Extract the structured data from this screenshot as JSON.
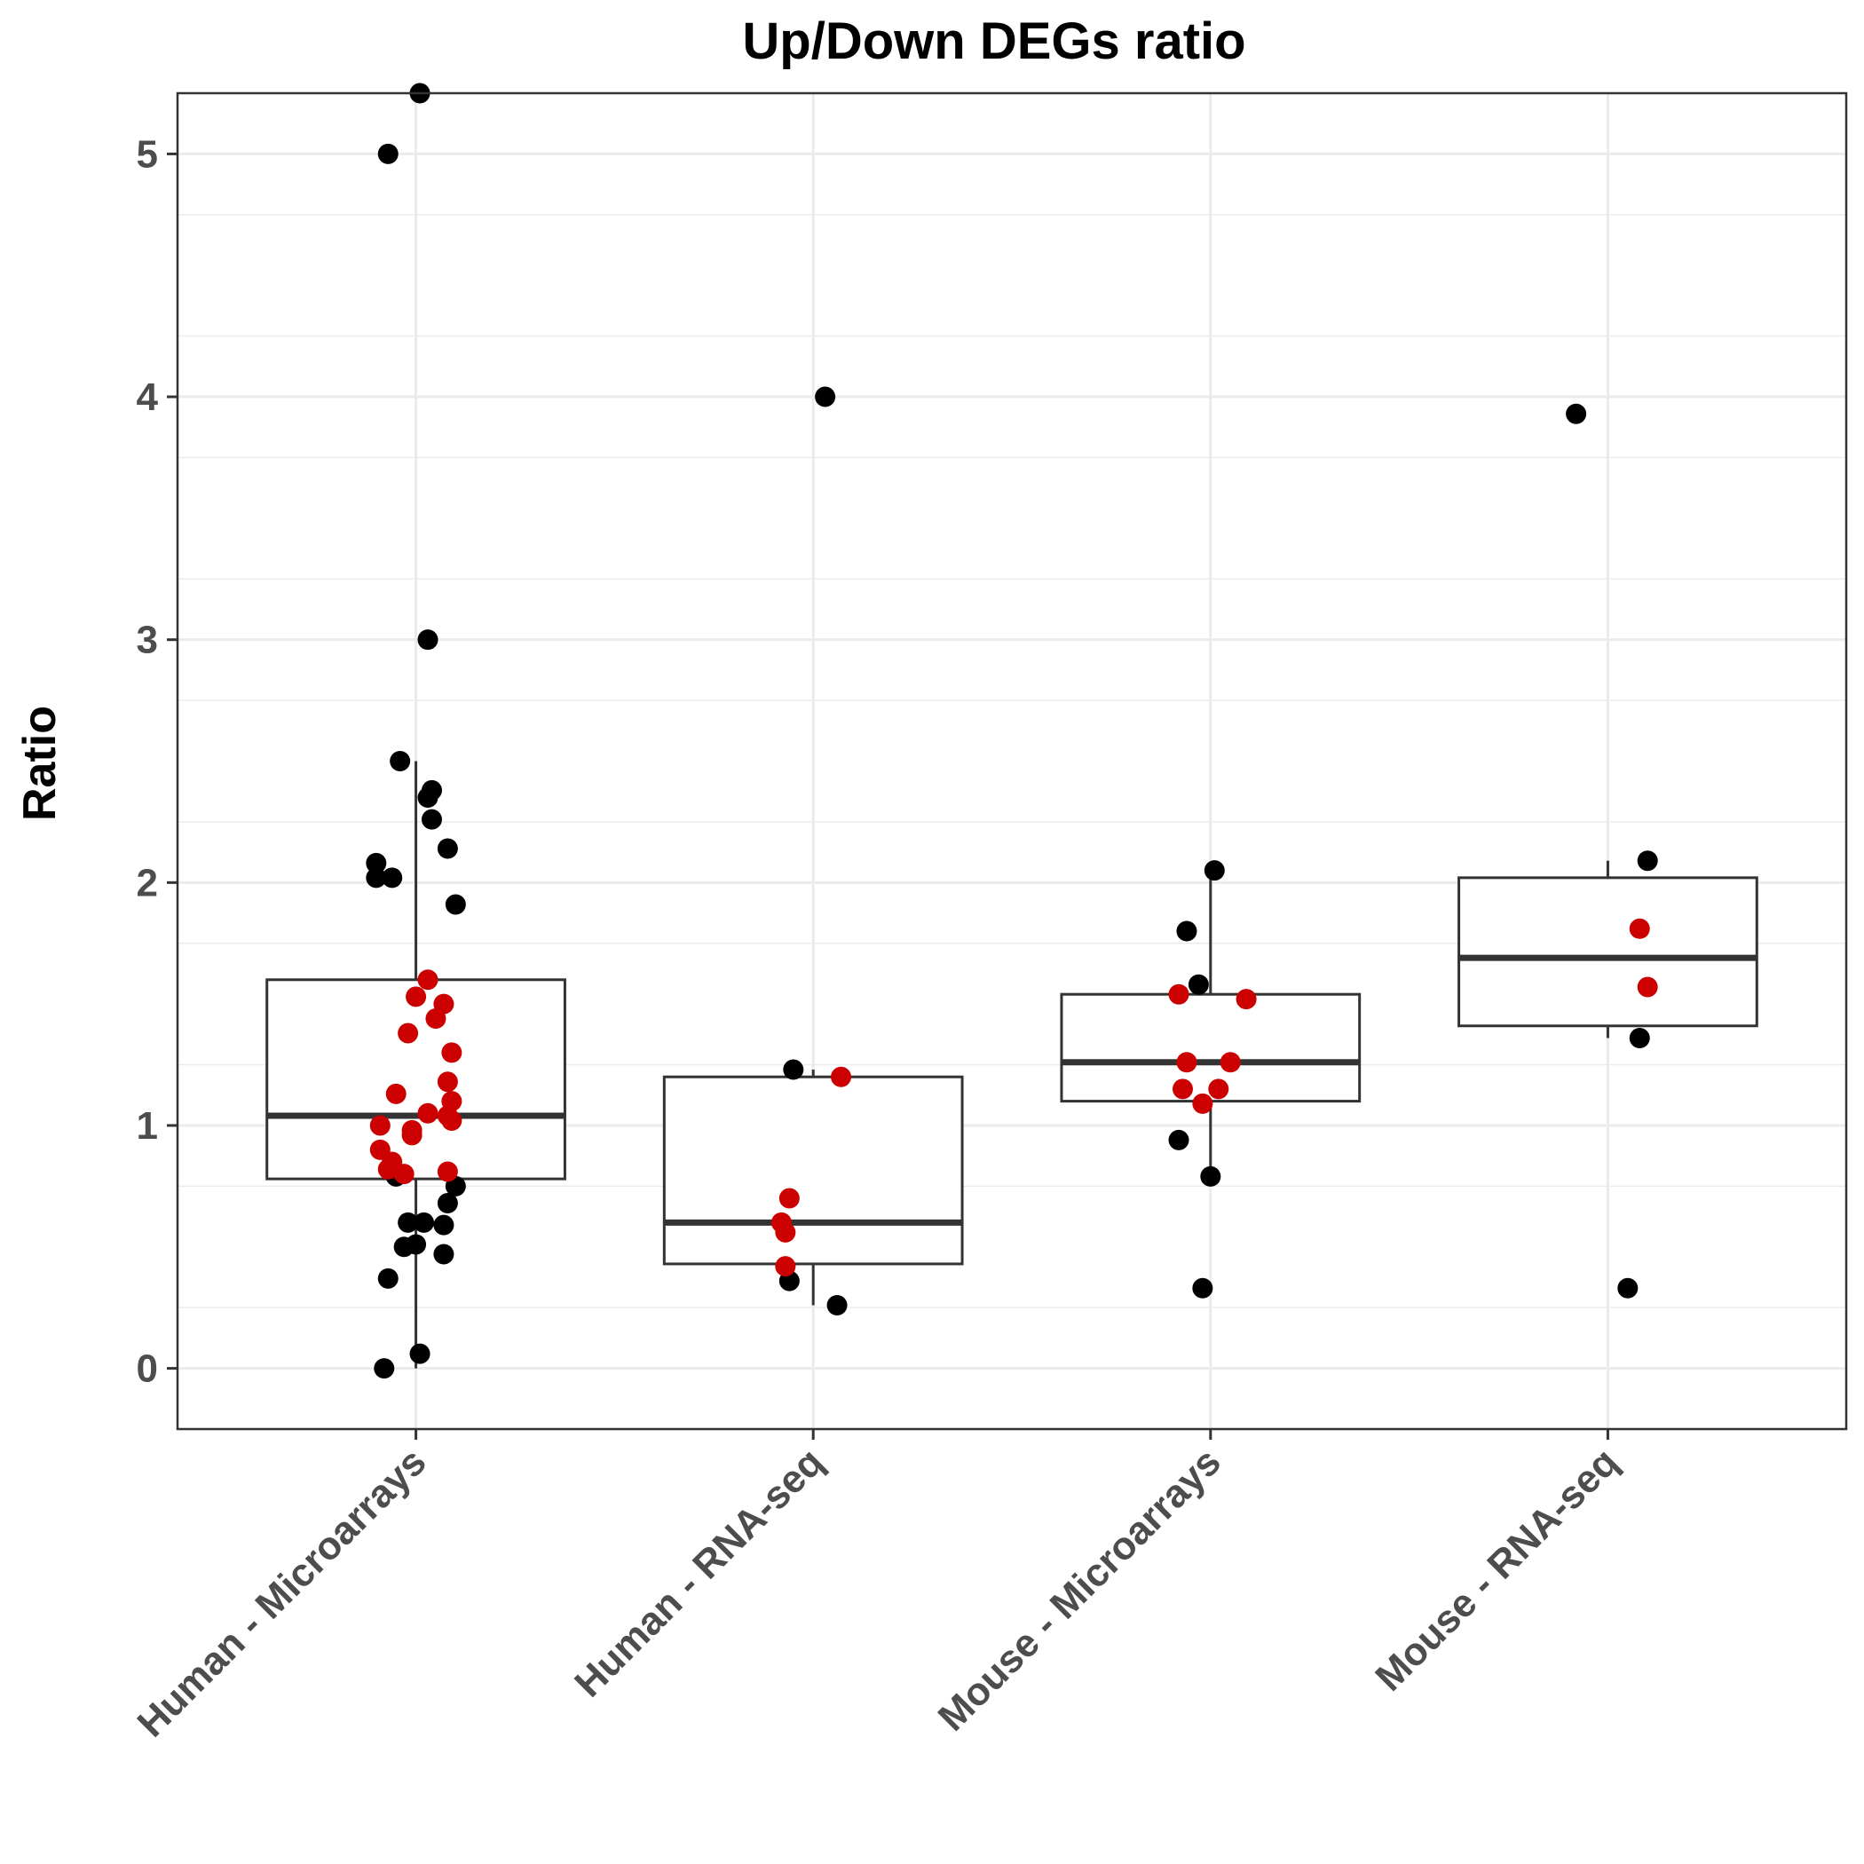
{
  "chart_data": {
    "type": "box",
    "title": "Up/Down DEGs ratio",
    "xlabel": "",
    "ylabel": "Ratio",
    "ylim": [
      -0.25,
      5.25
    ],
    "yticks": [
      0,
      1,
      2,
      3,
      4,
      5
    ],
    "grid": true,
    "categories": [
      "Human - Microarrays",
      "Human - RNA-seq",
      "Mouse - Microarrays",
      "Mouse - RNA-seq"
    ],
    "colors": {
      "black_point": "#000000",
      "red_point": "#cc0000",
      "box": "#333333",
      "grid": "#ebebeb"
    },
    "boxes": [
      {
        "category": "Human - Microarrays",
        "q1": 0.78,
        "median": 1.04,
        "q3": 1.6,
        "whisker_low": 0.0,
        "whisker_high": 2.5
      },
      {
        "category": "Human - RNA-seq",
        "q1": 0.43,
        "median": 0.6,
        "q3": 1.2,
        "whisker_low": 0.26,
        "whisker_high": 1.23
      },
      {
        "category": "Mouse - Microarrays",
        "q1": 1.1,
        "median": 1.26,
        "q3": 1.54,
        "whisker_low": 0.79,
        "whisker_high": 2.05
      },
      {
        "category": "Mouse - RNA-seq",
        "q1": 1.41,
        "median": 1.69,
        "q3": 2.02,
        "whisker_low": 1.36,
        "whisker_high": 2.09
      }
    ],
    "points": [
      {
        "category": "Human - Microarrays",
        "jitter": 0.01,
        "y": 5.25,
        "group": "black"
      },
      {
        "category": "Human - Microarrays",
        "jitter": -0.07,
        "y": 5.0,
        "group": "black"
      },
      {
        "category": "Human - Microarrays",
        "jitter": 0.03,
        "y": 3.0,
        "group": "black"
      },
      {
        "category": "Human - Microarrays",
        "jitter": -0.04,
        "y": 2.5,
        "group": "black"
      },
      {
        "category": "Human - Microarrays",
        "jitter": 0.04,
        "y": 2.38,
        "group": "black"
      },
      {
        "category": "Human - Microarrays",
        "jitter": 0.03,
        "y": 2.35,
        "group": "black"
      },
      {
        "category": "Human - Microarrays",
        "jitter": 0.04,
        "y": 2.26,
        "group": "black"
      },
      {
        "category": "Human - Microarrays",
        "jitter": 0.08,
        "y": 2.14,
        "group": "black"
      },
      {
        "category": "Human - Microarrays",
        "jitter": -0.1,
        "y": 2.08,
        "group": "black"
      },
      {
        "category": "Human - Microarrays",
        "jitter": -0.1,
        "y": 2.02,
        "group": "black"
      },
      {
        "category": "Human - Microarrays",
        "jitter": -0.06,
        "y": 2.02,
        "group": "black"
      },
      {
        "category": "Human - Microarrays",
        "jitter": 0.1,
        "y": 1.91,
        "group": "black"
      },
      {
        "category": "Human - Microarrays",
        "jitter": -0.05,
        "y": 0.79,
        "group": "black"
      },
      {
        "category": "Human - Microarrays",
        "jitter": 0.1,
        "y": 0.75,
        "group": "black"
      },
      {
        "category": "Human - Microarrays",
        "jitter": 0.08,
        "y": 0.68,
        "group": "black"
      },
      {
        "category": "Human - Microarrays",
        "jitter": -0.02,
        "y": 0.6,
        "group": "black"
      },
      {
        "category": "Human - Microarrays",
        "jitter": 0.02,
        "y": 0.6,
        "group": "black"
      },
      {
        "category": "Human - Microarrays",
        "jitter": 0.07,
        "y": 0.59,
        "group": "black"
      },
      {
        "category": "Human - Microarrays",
        "jitter": -0.03,
        "y": 0.5,
        "group": "black"
      },
      {
        "category": "Human - Microarrays",
        "jitter": 0.0,
        "y": 0.51,
        "group": "black"
      },
      {
        "category": "Human - Microarrays",
        "jitter": 0.07,
        "y": 0.47,
        "group": "black"
      },
      {
        "category": "Human - Microarrays",
        "jitter": -0.07,
        "y": 0.37,
        "group": "black"
      },
      {
        "category": "Human - Microarrays",
        "jitter": 0.01,
        "y": 0.06,
        "group": "black"
      },
      {
        "category": "Human - Microarrays",
        "jitter": -0.08,
        "y": 0.0,
        "group": "black"
      },
      {
        "category": "Human - Microarrays",
        "jitter": 0.03,
        "y": 1.6,
        "group": "red"
      },
      {
        "category": "Human - Microarrays",
        "jitter": 0.0,
        "y": 1.53,
        "group": "red"
      },
      {
        "category": "Human - Microarrays",
        "jitter": 0.07,
        "y": 1.5,
        "group": "red"
      },
      {
        "category": "Human - Microarrays",
        "jitter": 0.05,
        "y": 1.44,
        "group": "red"
      },
      {
        "category": "Human - Microarrays",
        "jitter": -0.02,
        "y": 1.38,
        "group": "red"
      },
      {
        "category": "Human - Microarrays",
        "jitter": 0.09,
        "y": 1.3,
        "group": "red"
      },
      {
        "category": "Human - Microarrays",
        "jitter": 0.08,
        "y": 1.18,
        "group": "red"
      },
      {
        "category": "Human - Microarrays",
        "jitter": -0.05,
        "y": 1.13,
        "group": "red"
      },
      {
        "category": "Human - Microarrays",
        "jitter": 0.09,
        "y": 1.1,
        "group": "red"
      },
      {
        "category": "Human - Microarrays",
        "jitter": 0.03,
        "y": 1.05,
        "group": "red"
      },
      {
        "category": "Human - Microarrays",
        "jitter": 0.08,
        "y": 1.04,
        "group": "red"
      },
      {
        "category": "Human - Microarrays",
        "jitter": 0.09,
        "y": 1.02,
        "group": "red"
      },
      {
        "category": "Human - Microarrays",
        "jitter": -0.09,
        "y": 1.0,
        "group": "red"
      },
      {
        "category": "Human - Microarrays",
        "jitter": -0.01,
        "y": 0.98,
        "group": "red"
      },
      {
        "category": "Human - Microarrays",
        "jitter": -0.01,
        "y": 0.96,
        "group": "red"
      },
      {
        "category": "Human - Microarrays",
        "jitter": -0.09,
        "y": 0.9,
        "group": "red"
      },
      {
        "category": "Human - Microarrays",
        "jitter": -0.06,
        "y": 0.85,
        "group": "red"
      },
      {
        "category": "Human - Microarrays",
        "jitter": -0.07,
        "y": 0.82,
        "group": "red"
      },
      {
        "category": "Human - Microarrays",
        "jitter": -0.03,
        "y": 0.8,
        "group": "red"
      },
      {
        "category": "Human - Microarrays",
        "jitter": 0.08,
        "y": 0.81,
        "group": "red"
      },
      {
        "category": "Human - RNA-seq",
        "jitter": 0.03,
        "y": 4.0,
        "group": "black"
      },
      {
        "category": "Human - RNA-seq",
        "jitter": -0.05,
        "y": 1.23,
        "group": "black"
      },
      {
        "category": "Human - RNA-seq",
        "jitter": -0.06,
        "y": 0.36,
        "group": "black"
      },
      {
        "category": "Human - RNA-seq",
        "jitter": 0.06,
        "y": 0.26,
        "group": "black"
      },
      {
        "category": "Human - RNA-seq",
        "jitter": 0.07,
        "y": 1.2,
        "group": "red"
      },
      {
        "category": "Human - RNA-seq",
        "jitter": -0.06,
        "y": 0.7,
        "group": "red"
      },
      {
        "category": "Human - RNA-seq",
        "jitter": -0.08,
        "y": 0.6,
        "group": "red"
      },
      {
        "category": "Human - RNA-seq",
        "jitter": -0.07,
        "y": 0.56,
        "group": "red"
      },
      {
        "category": "Human - RNA-seq",
        "jitter": -0.07,
        "y": 0.42,
        "group": "red"
      },
      {
        "category": "Mouse - Microarrays",
        "jitter": 0.01,
        "y": 2.05,
        "group": "black"
      },
      {
        "category": "Mouse - Microarrays",
        "jitter": -0.06,
        "y": 1.8,
        "group": "black"
      },
      {
        "category": "Mouse - Microarrays",
        "jitter": -0.03,
        "y": 1.58,
        "group": "black"
      },
      {
        "category": "Mouse - Microarrays",
        "jitter": -0.08,
        "y": 0.94,
        "group": "black"
      },
      {
        "category": "Mouse - Microarrays",
        "jitter": 0.0,
        "y": 0.79,
        "group": "black"
      },
      {
        "category": "Mouse - Microarrays",
        "jitter": -0.02,
        "y": 0.33,
        "group": "black"
      },
      {
        "category": "Mouse - Microarrays",
        "jitter": -0.08,
        "y": 1.54,
        "group": "red"
      },
      {
        "category": "Mouse - Microarrays",
        "jitter": 0.09,
        "y": 1.52,
        "group": "red"
      },
      {
        "category": "Mouse - Microarrays",
        "jitter": -0.06,
        "y": 1.26,
        "group": "red"
      },
      {
        "category": "Mouse - Microarrays",
        "jitter": 0.05,
        "y": 1.26,
        "group": "red"
      },
      {
        "category": "Mouse - Microarrays",
        "jitter": -0.07,
        "y": 1.15,
        "group": "red"
      },
      {
        "category": "Mouse - Microarrays",
        "jitter": 0.02,
        "y": 1.15,
        "group": "red"
      },
      {
        "category": "Mouse - Microarrays",
        "jitter": -0.02,
        "y": 1.09,
        "group": "red"
      },
      {
        "category": "Mouse - RNA-seq",
        "jitter": -0.08,
        "y": 3.93,
        "group": "black"
      },
      {
        "category": "Mouse - RNA-seq",
        "jitter": 0.1,
        "y": 2.09,
        "group": "black"
      },
      {
        "category": "Mouse - RNA-seq",
        "jitter": 0.08,
        "y": 1.36,
        "group": "black"
      },
      {
        "category": "Mouse - RNA-seq",
        "jitter": 0.05,
        "y": 0.33,
        "group": "black"
      },
      {
        "category": "Mouse - RNA-seq",
        "jitter": 0.08,
        "y": 1.81,
        "group": "red"
      },
      {
        "category": "Mouse - RNA-seq",
        "jitter": 0.1,
        "y": 1.57,
        "group": "red"
      }
    ]
  }
}
